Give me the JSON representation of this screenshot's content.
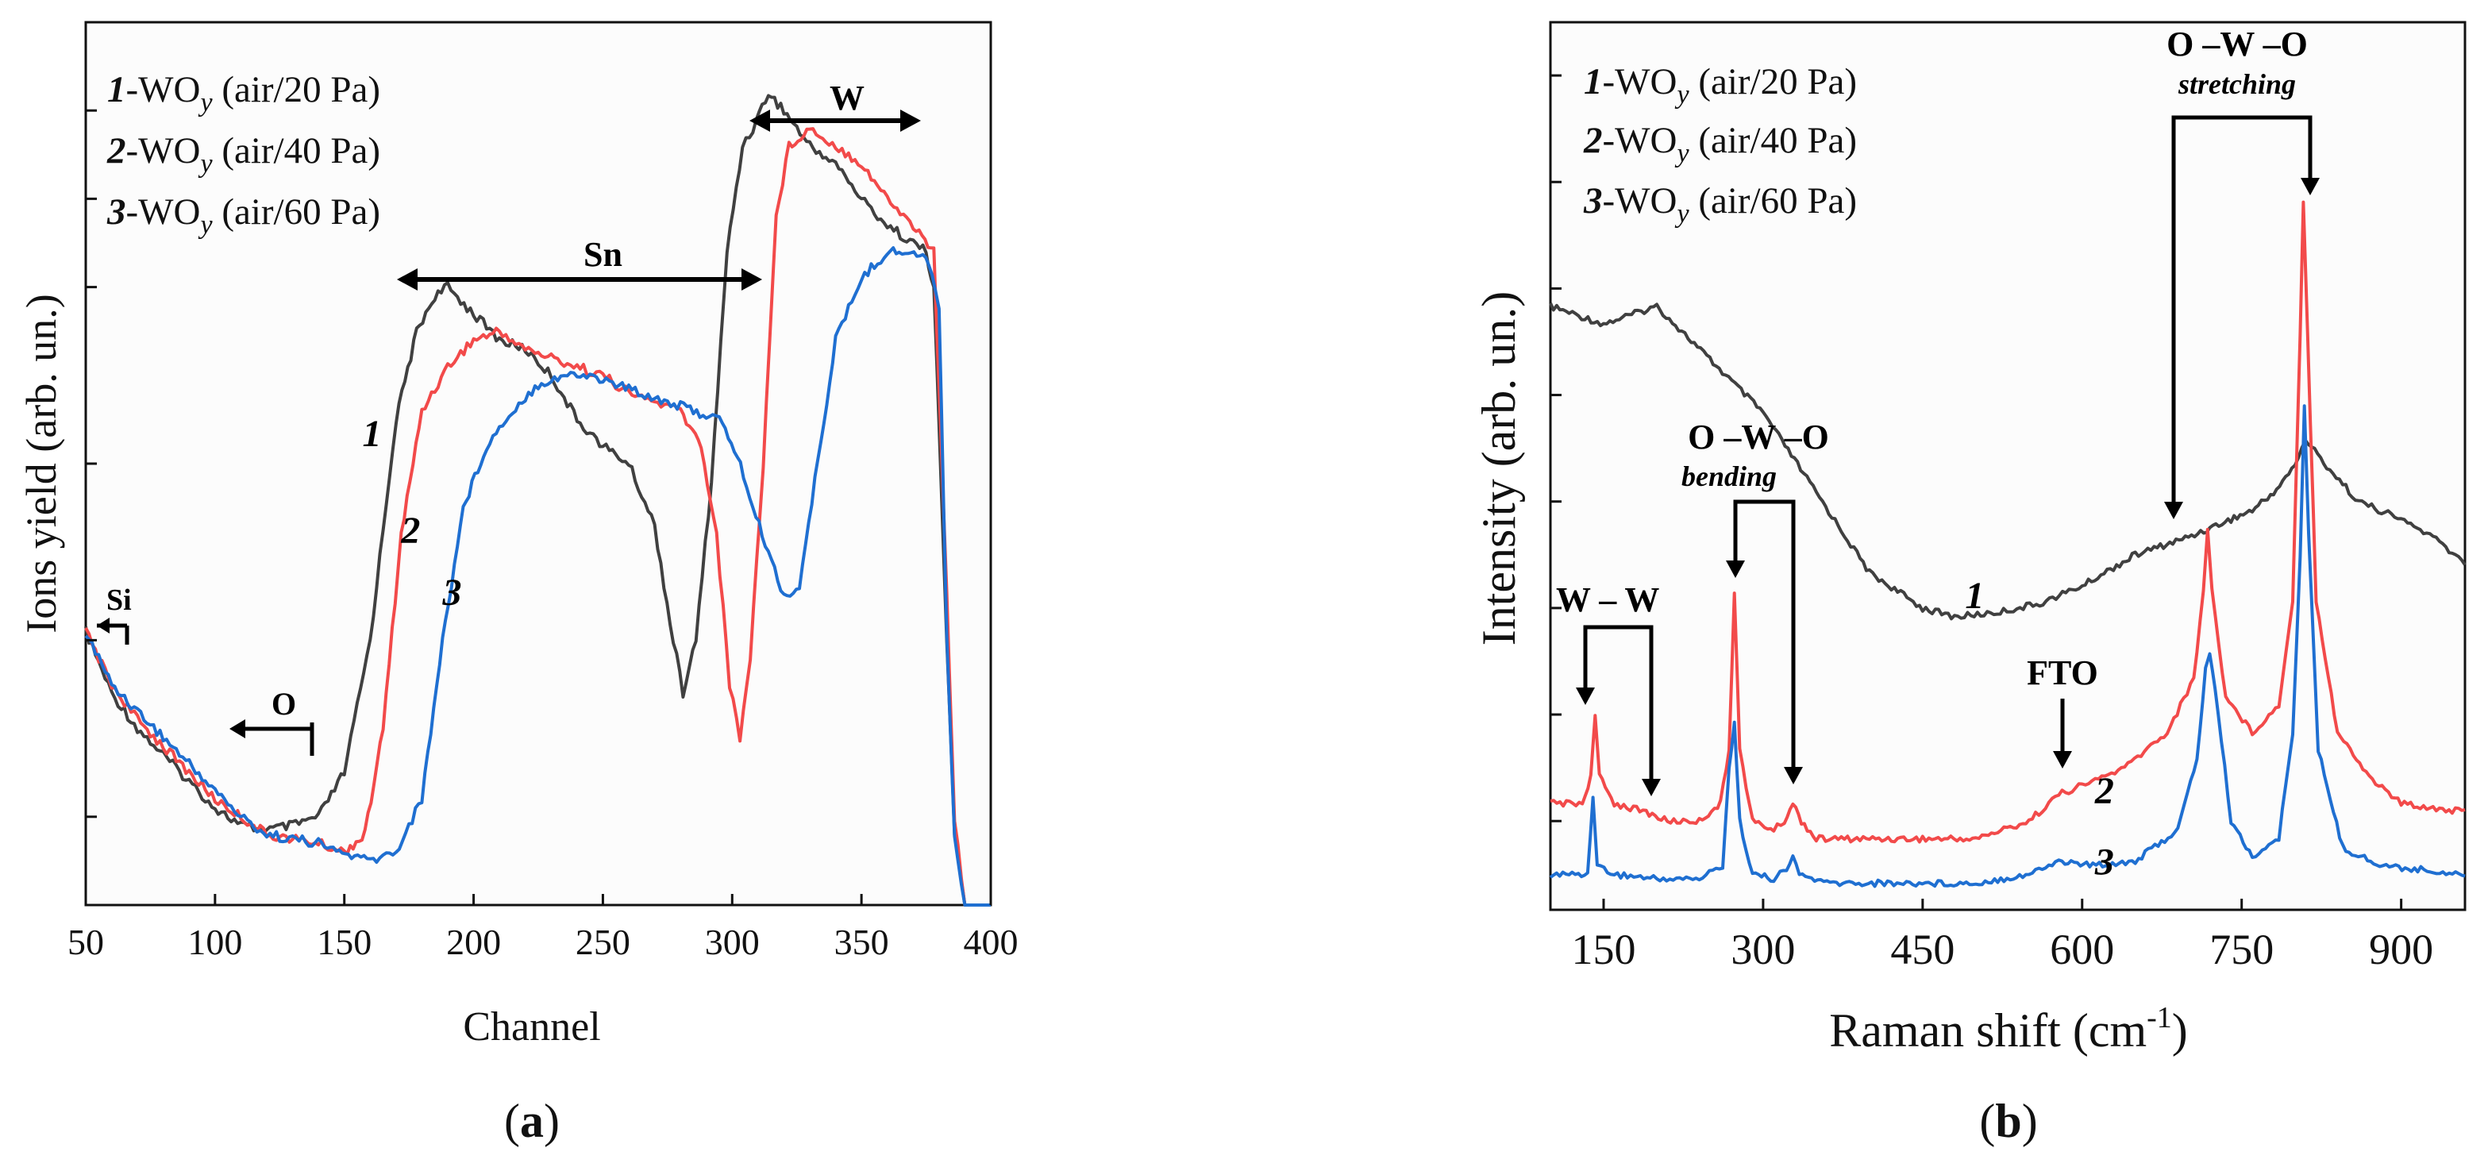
{
  "colors": {
    "s1": "#404040",
    "s2": "#f24a4a",
    "s3": "#1f6fd1",
    "axis": "#111111",
    "plot_bg": "#fcfcfc"
  },
  "panel_a": {
    "caption_open": "(",
    "caption_letter": "a",
    "caption_close": ")",
    "legend": [
      {
        "num": "1",
        "pre": "-WO",
        "sub": "y",
        "post": " (air/20 Pa)"
      },
      {
        "num": "2",
        "pre": "-WO",
        "sub": "y",
        "post": " (air/40 Pa)"
      },
      {
        "num": "3",
        "pre": "-WO",
        "sub": "y",
        "post": " (air/60 Pa)"
      }
    ],
    "annotations": {
      "si": "Si",
      "o": "O",
      "sn": "Sn",
      "w": "W"
    }
  },
  "panel_b": {
    "caption_open": "(",
    "caption_letter": "b",
    "caption_close": ")",
    "xlabel_main": "Raman shift (cm",
    "xlabel_sup": "-1",
    "xlabel_close": ")",
    "legend": [
      {
        "num": "1",
        "pre": "-WO",
        "sub": "y",
        "post": " (air/20 Pa)"
      },
      {
        "num": "2",
        "pre": "-WO",
        "sub": "y",
        "post": " (air/40 Pa)"
      },
      {
        "num": "3",
        "pre": "-WO",
        "sub": "y",
        "post": " (air/60 Pa)"
      }
    ],
    "annotations": {
      "ww": "W – W",
      "bend_title": "O –W –O",
      "bend_sub": "bending",
      "fto": "FTO",
      "stretch_title": "O –W –O",
      "stretch_sub": "stretching"
    }
  },
  "chart_data": [
    {
      "type": "line",
      "panel": "a",
      "title": "",
      "xlabel": "Channel",
      "ylabel": "Ions yield (arb. un.)",
      "xlim": [
        50,
        400
      ],
      "ylim": [
        0,
        1.0
      ],
      "x_ticks": [
        50,
        100,
        150,
        200,
        250,
        300,
        350,
        400
      ],
      "y_ticks": [
        0.1,
        0.3,
        0.5,
        0.7,
        0.8,
        0.9,
        1.0
      ],
      "y_tick_labels_shown": false,
      "curve_labels": [
        {
          "text": "1",
          "x": 157,
          "y": 0.52
        },
        {
          "text": "2",
          "x": 172,
          "y": 0.41
        },
        {
          "text": "3",
          "x": 188,
          "y": 0.34
        }
      ],
      "series": [
        {
          "name": "1-WOy (air/20 Pa)",
          "color": "#404040",
          "points": [
            [
              50,
              0.31
            ],
            [
              60,
              0.24
            ],
            [
              70,
              0.2
            ],
            [
              80,
              0.17
            ],
            [
              90,
              0.14
            ],
            [
              100,
              0.11
            ],
            [
              110,
              0.09
            ],
            [
              120,
              0.085
            ],
            [
              130,
              0.09
            ],
            [
              140,
              0.1
            ],
            [
              150,
              0.15
            ],
            [
              160,
              0.3
            ],
            [
              170,
              0.55
            ],
            [
              178,
              0.65
            ],
            [
              185,
              0.69
            ],
            [
              190,
              0.7
            ],
            [
              200,
              0.67
            ],
            [
              210,
              0.64
            ],
            [
              220,
              0.63
            ],
            [
              230,
              0.6
            ],
            [
              240,
              0.55
            ],
            [
              250,
              0.52
            ],
            [
              260,
              0.5
            ],
            [
              270,
              0.43
            ],
            [
              276,
              0.32
            ],
            [
              281,
              0.24
            ],
            [
              286,
              0.3
            ],
            [
              292,
              0.48
            ],
            [
              298,
              0.74
            ],
            [
              304,
              0.86
            ],
            [
              308,
              0.88
            ],
            [
              314,
              0.92
            ],
            [
              320,
              0.9
            ],
            [
              330,
              0.86
            ],
            [
              340,
              0.84
            ],
            [
              350,
              0.8
            ],
            [
              360,
              0.77
            ],
            [
              370,
              0.75
            ],
            [
              375,
              0.74
            ],
            [
              378,
              0.7
            ],
            [
              383,
              0.3
            ],
            [
              386,
              0.08
            ],
            [
              390,
              0.0
            ],
            [
              400,
              0.0
            ]
          ]
        },
        {
          "name": "2-WOy (air/40 Pa)",
          "color": "#f24a4a",
          "points": [
            [
              50,
              0.31
            ],
            [
              60,
              0.25
            ],
            [
              70,
              0.21
            ],
            [
              80,
              0.18
            ],
            [
              90,
              0.15
            ],
            [
              100,
              0.12
            ],
            [
              110,
              0.1
            ],
            [
              120,
              0.08
            ],
            [
              130,
              0.075
            ],
            [
              140,
              0.07
            ],
            [
              150,
              0.06
            ],
            [
              158,
              0.08
            ],
            [
              165,
              0.2
            ],
            [
              172,
              0.42
            ],
            [
              180,
              0.56
            ],
            [
              190,
              0.61
            ],
            [
              200,
              0.64
            ],
            [
              210,
              0.65
            ],
            [
              220,
              0.63
            ],
            [
              230,
              0.62
            ],
            [
              240,
              0.61
            ],
            [
              250,
              0.6
            ],
            [
              260,
              0.58
            ],
            [
              270,
              0.57
            ],
            [
              280,
              0.56
            ],
            [
              288,
              0.52
            ],
            [
              294,
              0.42
            ],
            [
              299,
              0.25
            ],
            [
              303,
              0.19
            ],
            [
              307,
              0.28
            ],
            [
              312,
              0.5
            ],
            [
              317,
              0.78
            ],
            [
              322,
              0.86
            ],
            [
              330,
              0.88
            ],
            [
              340,
              0.86
            ],
            [
              350,
              0.84
            ],
            [
              360,
              0.8
            ],
            [
              370,
              0.77
            ],
            [
              378,
              0.74
            ],
            [
              383,
              0.35
            ],
            [
              386,
              0.1
            ],
            [
              390,
              0.0
            ],
            [
              400,
              0.0
            ]
          ]
        },
        {
          "name": "3-WOy (air/60 Pa)",
          "color": "#1f6fd1",
          "points": [
            [
              50,
              0.31
            ],
            [
              60,
              0.25
            ],
            [
              70,
              0.22
            ],
            [
              80,
              0.19
            ],
            [
              90,
              0.16
            ],
            [
              100,
              0.13
            ],
            [
              110,
              0.1
            ],
            [
              120,
              0.08
            ],
            [
              130,
              0.075
            ],
            [
              140,
              0.07
            ],
            [
              148,
              0.06
            ],
            [
              160,
              0.05
            ],
            [
              170,
              0.06
            ],
            [
              180,
              0.12
            ],
            [
              188,
              0.3
            ],
            [
              196,
              0.45
            ],
            [
              205,
              0.52
            ],
            [
              215,
              0.56
            ],
            [
              225,
              0.59
            ],
            [
              235,
              0.6
            ],
            [
              245,
              0.6
            ],
            [
              255,
              0.59
            ],
            [
              265,
              0.58
            ],
            [
              275,
              0.57
            ],
            [
              285,
              0.56
            ],
            [
              295,
              0.55
            ],
            [
              302,
              0.51
            ],
            [
              308,
              0.45
            ],
            [
              314,
              0.4
            ],
            [
              320,
              0.35
            ],
            [
              326,
              0.36
            ],
            [
              332,
              0.48
            ],
            [
              340,
              0.64
            ],
            [
              350,
              0.71
            ],
            [
              360,
              0.74
            ],
            [
              368,
              0.74
            ],
            [
              376,
              0.73
            ],
            [
              380,
              0.68
            ],
            [
              383,
              0.3
            ],
            [
              386,
              0.08
            ],
            [
              390,
              0.0
            ],
            [
              400,
              0.0
            ]
          ]
        }
      ]
    },
    {
      "type": "line",
      "panel": "b",
      "title": "",
      "xlabel": "Raman shift (cm-1)",
      "ylabel": "Intensity (arb. un.)",
      "xlim": [
        100,
        960
      ],
      "ylim": [
        0,
        1.0
      ],
      "x_ticks": [
        150,
        300,
        450,
        600,
        750,
        900
      ],
      "y_ticks": [
        0.1,
        0.22,
        0.34,
        0.46,
        0.58,
        0.7,
        0.82,
        0.94
      ],
      "y_tick_labels_shown": false,
      "curve_labels": [
        {
          "text": "1",
          "x": 490,
          "y": 0.34
        },
        {
          "text": "2",
          "x": 612,
          "y": 0.12
        },
        {
          "text": "3",
          "x": 612,
          "y": 0.04
        }
      ],
      "annotation_positions_cm1": {
        "ww_peaks": [
          140,
          190
        ],
        "bending_peaks": [
          272,
          328
        ],
        "fto": 578,
        "stretching_peaks": [
          718,
          808
        ]
      },
      "series": [
        {
          "name": "1-WOy (air/20 Pa)",
          "color": "#404040",
          "points": [
            [
              100,
              0.68
            ],
            [
              150,
              0.66
            ],
            [
              200,
              0.68
            ],
            [
              250,
              0.62
            ],
            [
              300,
              0.56
            ],
            [
              350,
              0.47
            ],
            [
              400,
              0.38
            ],
            [
              450,
              0.34
            ],
            [
              480,
              0.33
            ],
            [
              520,
              0.335
            ],
            [
              560,
              0.345
            ],
            [
              600,
              0.365
            ],
            [
              650,
              0.4
            ],
            [
              700,
              0.42
            ],
            [
              720,
              0.43
            ],
            [
              740,
              0.44
            ],
            [
              760,
              0.45
            ],
            [
              780,
              0.47
            ],
            [
              800,
              0.5
            ],
            [
              810,
              0.53
            ],
            [
              830,
              0.5
            ],
            [
              860,
              0.46
            ],
            [
              900,
              0.44
            ],
            [
              930,
              0.42
            ],
            [
              960,
              0.39
            ]
          ]
        },
        {
          "name": "2-WOy (air/40 Pa)",
          "color": "#f24a4a",
          "points": [
            [
              100,
              0.12
            ],
            [
              130,
              0.12
            ],
            [
              138,
              0.15
            ],
            [
              142,
              0.22
            ],
            [
              146,
              0.15
            ],
            [
              160,
              0.12
            ],
            [
              190,
              0.11
            ],
            [
              210,
              0.1
            ],
            [
              240,
              0.1
            ],
            [
              260,
              0.12
            ],
            [
              268,
              0.18
            ],
            [
              273,
              0.36
            ],
            [
              278,
              0.18
            ],
            [
              290,
              0.1
            ],
            [
              310,
              0.09
            ],
            [
              320,
              0.1
            ],
            [
              328,
              0.12
            ],
            [
              336,
              0.1
            ],
            [
              350,
              0.08
            ],
            [
              400,
              0.08
            ],
            [
              450,
              0.08
            ],
            [
              500,
              0.08
            ],
            [
              550,
              0.1
            ],
            [
              578,
              0.13
            ],
            [
              600,
              0.14
            ],
            [
              640,
              0.16
            ],
            [
              680,
              0.2
            ],
            [
              705,
              0.26
            ],
            [
              714,
              0.36
            ],
            [
              718,
              0.43
            ],
            [
              722,
              0.36
            ],
            [
              735,
              0.24
            ],
            [
              760,
              0.2
            ],
            [
              785,
              0.23
            ],
            [
              798,
              0.35
            ],
            [
              805,
              0.65
            ],
            [
              808,
              0.8
            ],
            [
              812,
              0.65
            ],
            [
              820,
              0.35
            ],
            [
              840,
              0.2
            ],
            [
              870,
              0.15
            ],
            [
              900,
              0.12
            ],
            [
              960,
              0.11
            ]
          ]
        },
        {
          "name": "3-WOy (air/60 Pa)",
          "color": "#1f6fd1",
          "points": [
            [
              100,
              0.04
            ],
            [
              135,
              0.04
            ],
            [
              140,
              0.13
            ],
            [
              144,
              0.05
            ],
            [
              160,
              0.04
            ],
            [
              200,
              0.035
            ],
            [
              240,
              0.035
            ],
            [
              262,
              0.05
            ],
            [
              268,
              0.16
            ],
            [
              273,
              0.21
            ],
            [
              278,
              0.1
            ],
            [
              290,
              0.04
            ],
            [
              310,
              0.035
            ],
            [
              322,
              0.045
            ],
            [
              328,
              0.06
            ],
            [
              334,
              0.04
            ],
            [
              360,
              0.03
            ],
            [
              420,
              0.03
            ],
            [
              500,
              0.03
            ],
            [
              550,
              0.04
            ],
            [
              578,
              0.055
            ],
            [
              610,
              0.05
            ],
            [
              650,
              0.055
            ],
            [
              690,
              0.09
            ],
            [
              708,
              0.17
            ],
            [
              716,
              0.27
            ],
            [
              720,
              0.29
            ],
            [
              725,
              0.25
            ],
            [
              740,
              0.1
            ],
            [
              760,
              0.06
            ],
            [
              785,
              0.08
            ],
            [
              798,
              0.2
            ],
            [
              805,
              0.4
            ],
            [
              809,
              0.57
            ],
            [
              813,
              0.42
            ],
            [
              822,
              0.18
            ],
            [
              845,
              0.07
            ],
            [
              880,
              0.05
            ],
            [
              960,
              0.04
            ]
          ]
        }
      ]
    }
  ]
}
